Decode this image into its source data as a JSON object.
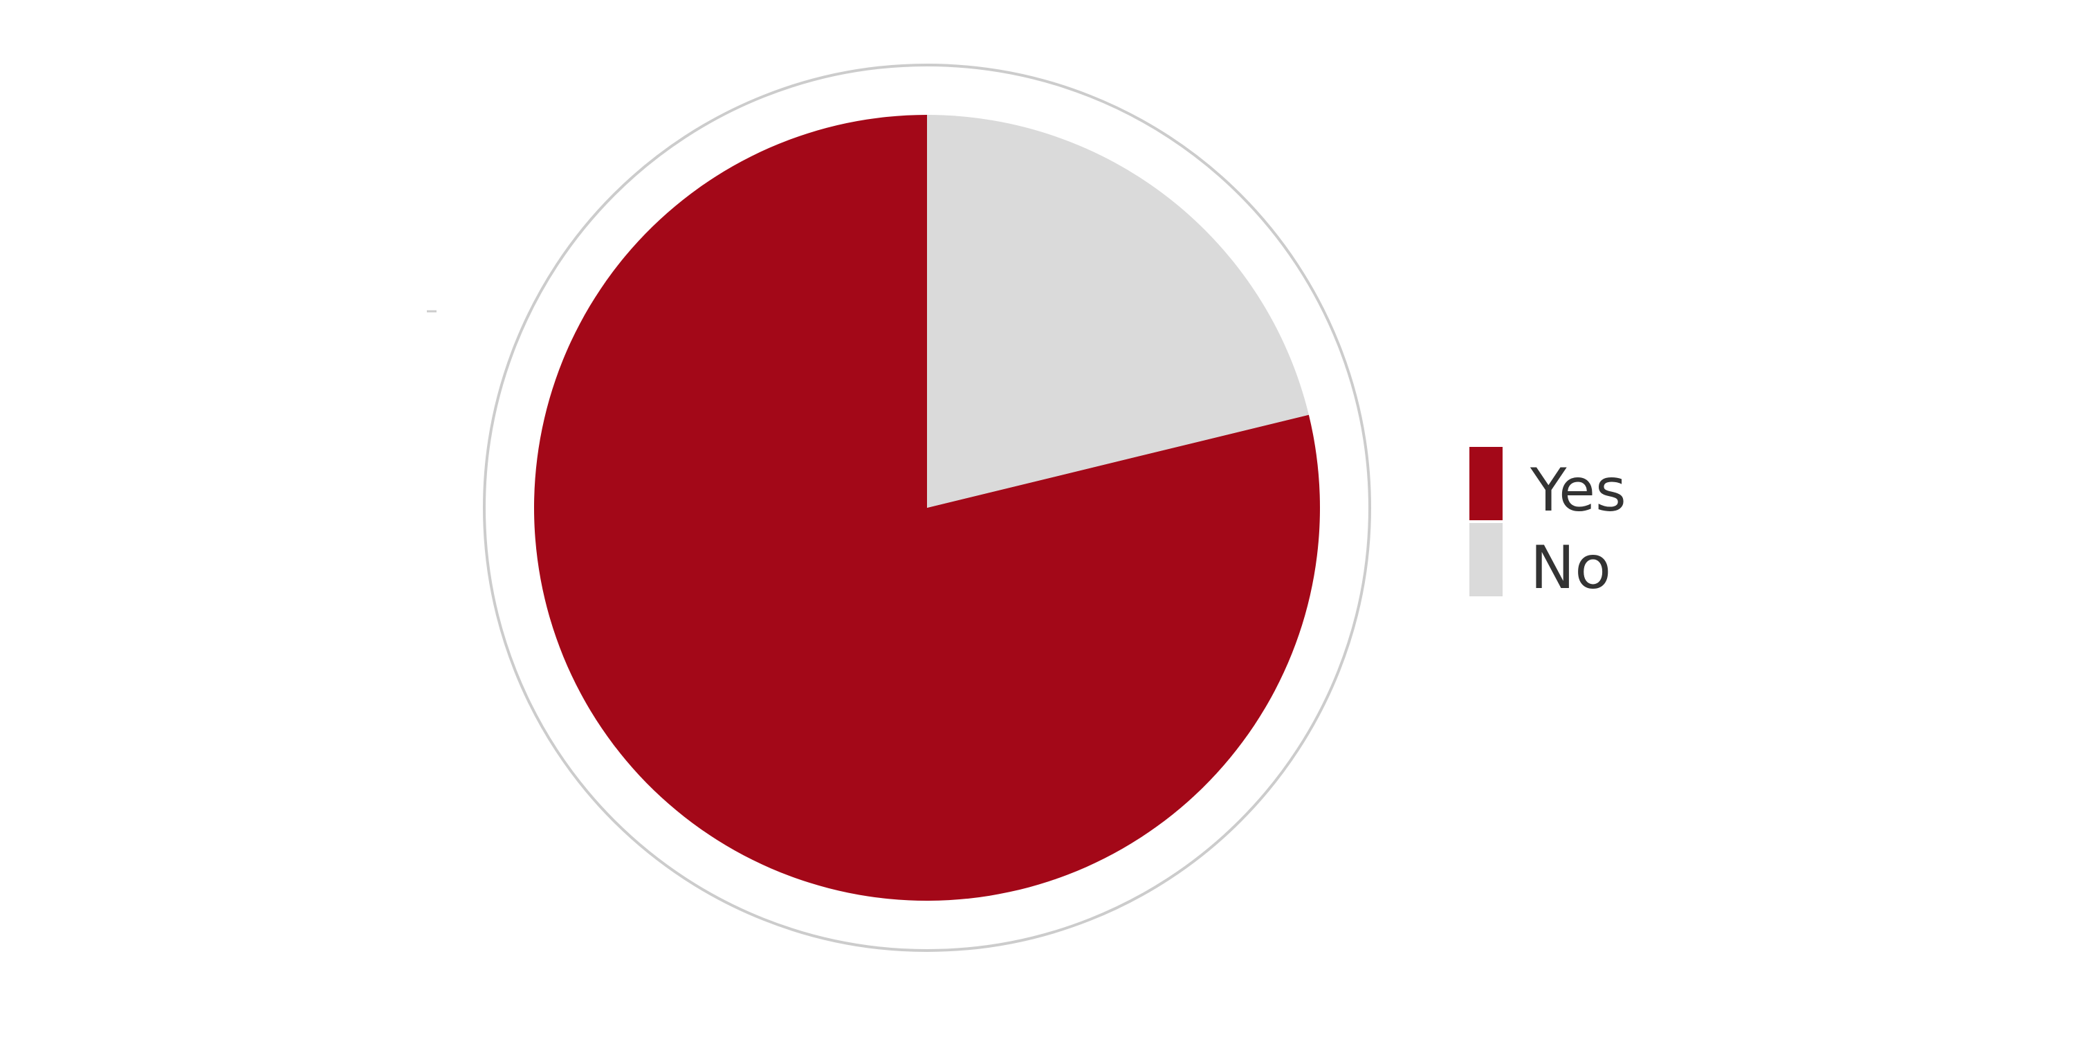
{
  "chart_data": {
    "type": "pie",
    "categories": [
      "Yes",
      "No"
    ],
    "values": [
      78.8,
      21.2
    ],
    "colors": {
      "Yes": "#a30818",
      "No": "#dadada",
      "outer_ring": "#cccccc"
    },
    "start_angle_deg": 0,
    "direction": "counter-clockwise",
    "legend": {
      "placement": "right",
      "entries": [
        "Yes",
        "No"
      ]
    }
  }
}
